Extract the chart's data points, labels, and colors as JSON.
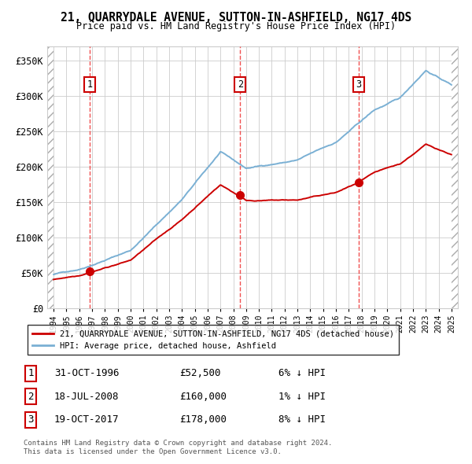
{
  "title": "21, QUARRYDALE AVENUE, SUTTON-IN-ASHFIELD, NG17 4DS",
  "subtitle": "Price paid vs. HM Land Registry's House Price Index (HPI)",
  "xlim": [
    1993.5,
    2025.5
  ],
  "ylim": [
    0,
    370000
  ],
  "yticks": [
    0,
    50000,
    100000,
    150000,
    200000,
    250000,
    300000,
    350000
  ],
  "ytick_labels": [
    "£0",
    "£50K",
    "£100K",
    "£150K",
    "£200K",
    "£250K",
    "£300K",
    "£350K"
  ],
  "sale_dates": [
    1996.83,
    2008.54,
    2017.79
  ],
  "sale_prices": [
    52500,
    160000,
    178000
  ],
  "sale_labels": [
    "1",
    "2",
    "3"
  ],
  "sale_date_strs": [
    "31-OCT-1996",
    "18-JUL-2008",
    "19-OCT-2017"
  ],
  "sale_price_strs": [
    "£52,500",
    "£160,000",
    "£178,000"
  ],
  "sale_hpi_strs": [
    "6% ↓ HPI",
    "1% ↓ HPI",
    "8% ↓ HPI"
  ],
  "legend_line1": "21, QUARRYDALE AVENUE, SUTTON-IN-ASHFIELD, NG17 4DS (detached house)",
  "legend_line2": "HPI: Average price, detached house, Ashfield",
  "footer1": "Contains HM Land Registry data © Crown copyright and database right 2024.",
  "footer2": "This data is licensed under the Open Government Licence v3.0.",
  "red_color": "#cc0000",
  "blue_color": "#7ab0d4",
  "grid_color": "#cccccc",
  "dashed_color": "#ee3333",
  "hpi_noise_seed": 42,
  "hpi_noise_scale": 1200,
  "pp_noise_scale": 900
}
